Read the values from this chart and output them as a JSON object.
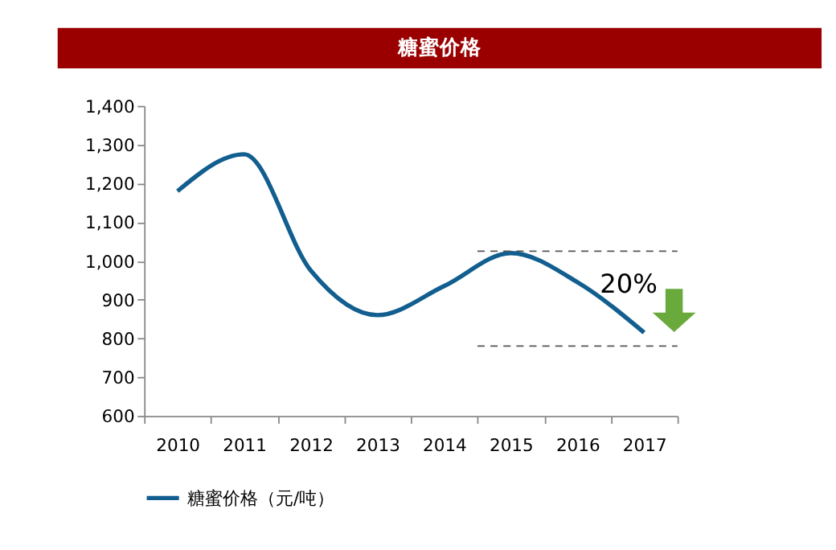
{
  "chart_data": {
    "type": "line",
    "title": "糖蜜价格",
    "categories": [
      "2010",
      "2011",
      "2012",
      "2013",
      "2014",
      "2015",
      "2016",
      "2017"
    ],
    "series": [
      {
        "name": "糖蜜价格（元/吨）",
        "color": "#115e8f",
        "values": [
          1180,
          1275,
          975,
          860,
          935,
          1020,
          945,
          815
        ]
      }
    ],
    "ylim": [
      600,
      1400
    ],
    "yticks": [
      {
        "value": 600,
        "label": "600"
      },
      {
        "value": 700,
        "label": "700"
      },
      {
        "value": 800,
        "label": "800"
      },
      {
        "value": 900,
        "label": "900"
      },
      {
        "value": 1000,
        "label": "1,000"
      },
      {
        "value": 1100,
        "label": "1,100"
      },
      {
        "value": 1200,
        "label": "1,200"
      },
      {
        "value": 1300,
        "label": "1,300"
      },
      {
        "value": 1400,
        "label": "1,400"
      }
    ],
    "ref_lines": [
      {
        "axis": "y",
        "value": 1025,
        "label": null,
        "color": "#555555",
        "line_style": "dashed"
      },
      {
        "axis": "y",
        "value": 780,
        "label": null,
        "color": "#555555",
        "line_style": "dashed"
      }
    ],
    "annotations": [
      "20%"
    ],
    "grid": false,
    "legend": "bottom",
    "marker": "none",
    "line_style": "solid"
  }
}
